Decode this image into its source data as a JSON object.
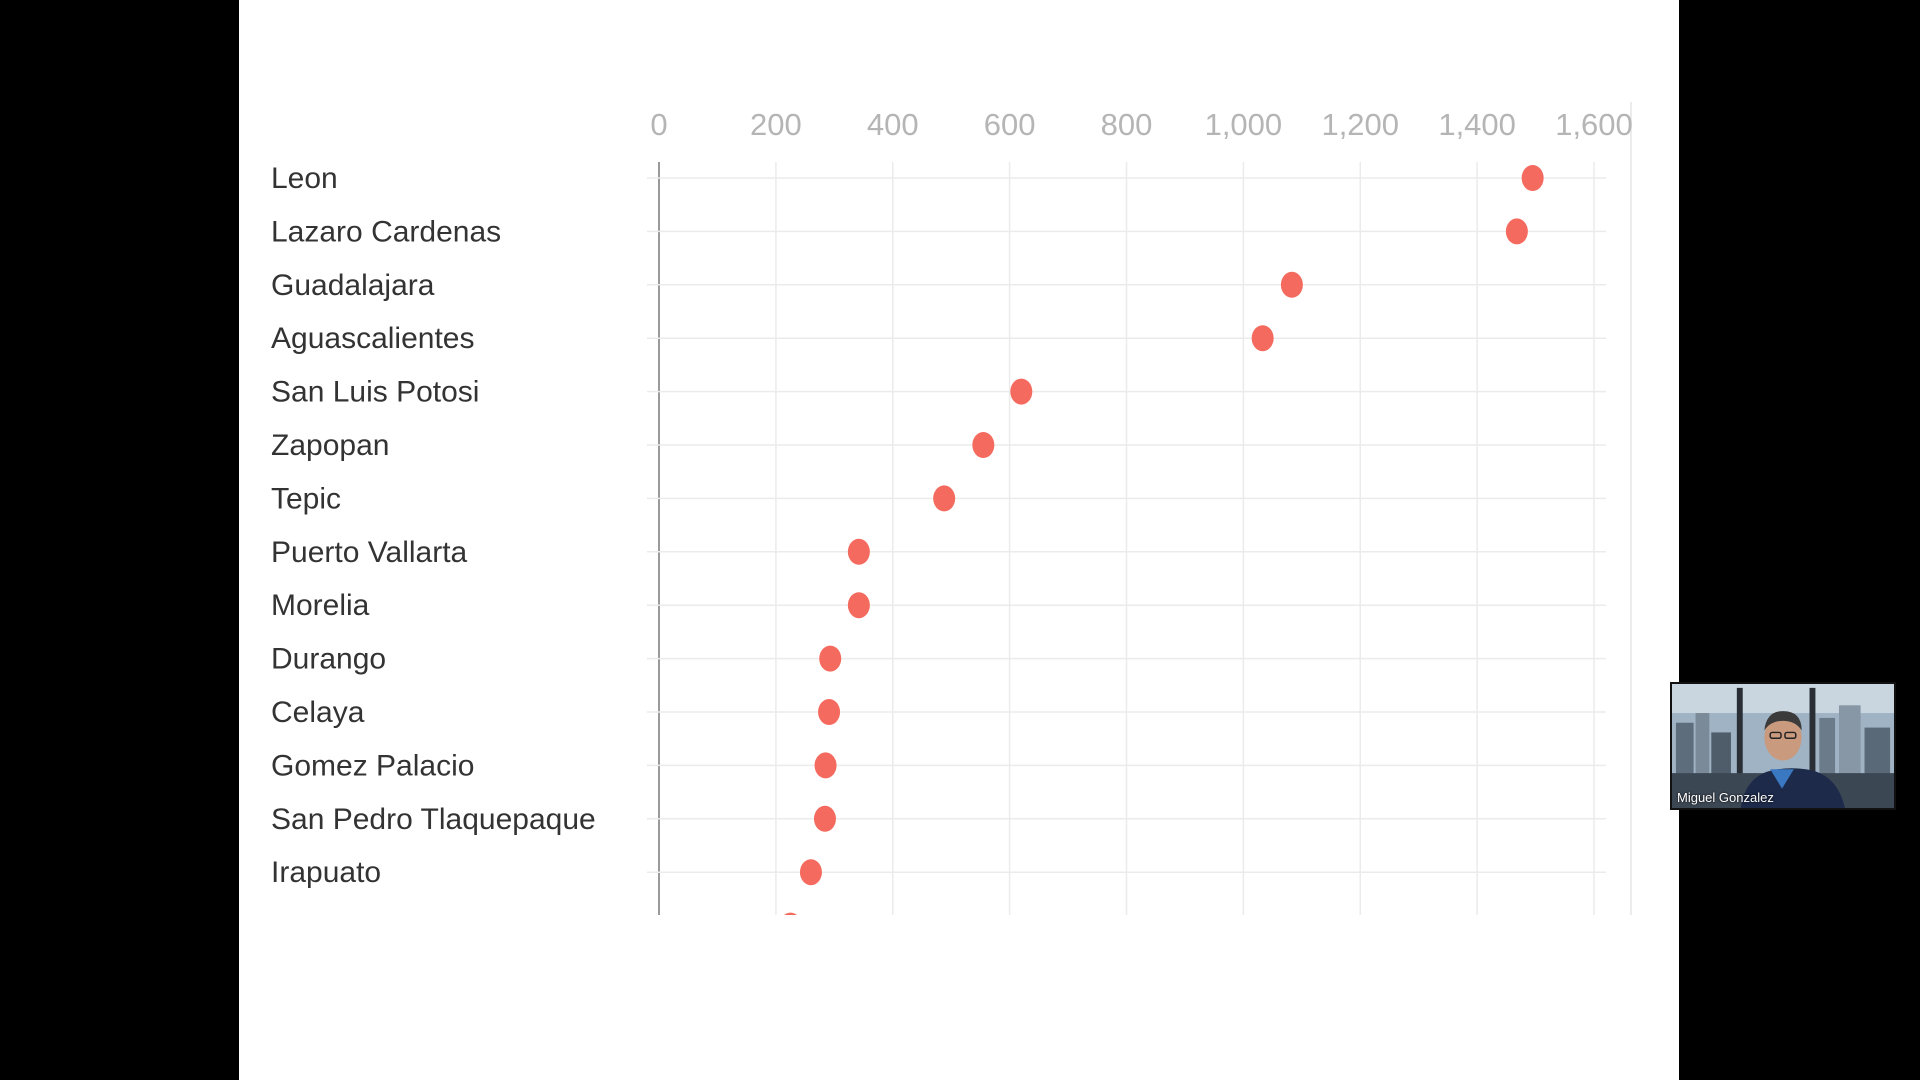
{
  "chart_data": {
    "type": "scatter",
    "orientation": "horizontal-dot",
    "xlim": [
      0,
      1600
    ],
    "x_ticks": [
      0,
      200,
      400,
      600,
      800,
      1000,
      1200,
      1400,
      1600
    ],
    "x_tick_labels": [
      "0",
      "200",
      "400",
      "600",
      "800",
      "1,000",
      "1,200",
      "1,400",
      "1,600"
    ],
    "categories": [
      "Leon",
      "Lazaro Cardenas",
      "Guadalajara",
      "Aguascalientes",
      "San Luis Potosi",
      "Zapopan",
      "Tepic",
      "Puerto Vallarta",
      "Morelia",
      "Durango",
      "Celaya",
      "Gomez Palacio",
      "San Pedro Tlaquepaque",
      "Irapuato"
    ],
    "values": [
      1495,
      1468,
      1083,
      1033,
      620,
      555,
      488,
      342,
      342,
      293,
      291,
      285,
      284,
      260
    ],
    "partial_value_below": 225,
    "grid": true,
    "point_color": "#f56a5e",
    "grid_color": "#ebebeb",
    "axis_color": "#9a9a9a"
  },
  "video_call": {
    "participant_name": "Miguel Gonzalez"
  }
}
